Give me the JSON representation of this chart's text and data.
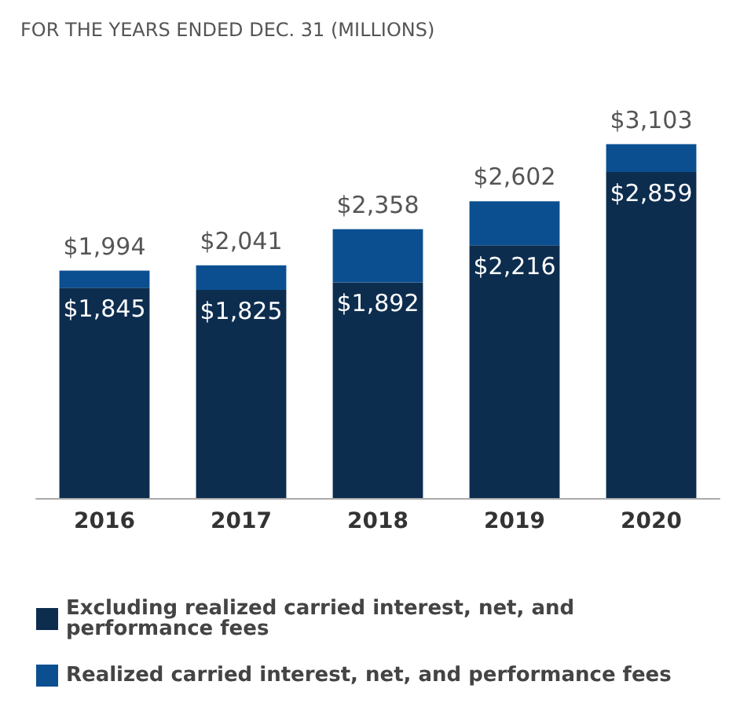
{
  "chart_data": {
    "type": "bar",
    "subtitle": "FOR THE YEARS ENDED DEC. 31 (MILLIONS)",
    "categories": [
      "2016",
      "2017",
      "2018",
      "2019",
      "2020"
    ],
    "stacked": true,
    "legend": "bottom",
    "totals": [
      "$1,994",
      "$2,041",
      "$2,358",
      "$2,602",
      "$3,103"
    ],
    "series": [
      {
        "name": "Excluding realized carried interest, net, and performance fees",
        "color": "#0d2d4f",
        "values": [
          1845,
          1825,
          1892,
          2216,
          2859
        ],
        "value_labels": [
          "$1,845",
          "$1,825",
          "$1,892",
          "$2,216",
          "$2,859"
        ]
      },
      {
        "name": "Realized carried interest, net, and performance fees",
        "color": "#0b4f91",
        "values": [
          149,
          216,
          466,
          386,
          244
        ]
      }
    ]
  }
}
